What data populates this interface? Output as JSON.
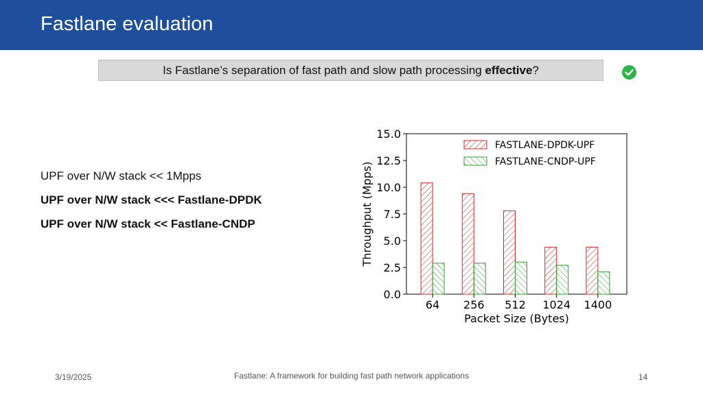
{
  "header": {
    "title": "Fastlane evaluation"
  },
  "question": {
    "prefix": "Is Fastlane’s separation of fast path and slow path processing ",
    "emph": "effective",
    "suffix": "?"
  },
  "status_icon": {
    "name": "check-circle-icon",
    "color": "#2db34a"
  },
  "bullets": [
    {
      "text": "UPF over N/W stack << 1Mpps",
      "bold": false
    },
    {
      "text": "UPF over N/W stack <<< Fastlane-DPDK",
      "bold": true
    },
    {
      "text": "UPF over N/W stack << Fastlane-CNDP",
      "bold": true
    }
  ],
  "chart_data": {
    "type": "bar",
    "categories": [
      "64",
      "256",
      "512",
      "1024",
      "1400"
    ],
    "series": [
      {
        "name": "FASTLANE-DPDK-UPF",
        "values": [
          10.4,
          9.4,
          7.8,
          4.4,
          4.4
        ],
        "color": "#d62728"
      },
      {
        "name": "FASTLANE-CNDP-UPF",
        "values": [
          2.9,
          2.9,
          3.0,
          2.7,
          2.1
        ],
        "color": "#2ca02c"
      }
    ],
    "xlabel": "Packet Size (Bytes)",
    "ylabel": "Throughput (Mpps)",
    "ylim": [
      0,
      15
    ],
    "yticks": [
      "0.0",
      "2.5",
      "5.0",
      "7.5",
      "10.0",
      "12.5",
      "15.0"
    ],
    "grid": false,
    "legend": "top-right"
  },
  "footer": {
    "date": "3/19/2025",
    "center": "Fastlane: A framework for building fast path network applications",
    "page": "14"
  }
}
